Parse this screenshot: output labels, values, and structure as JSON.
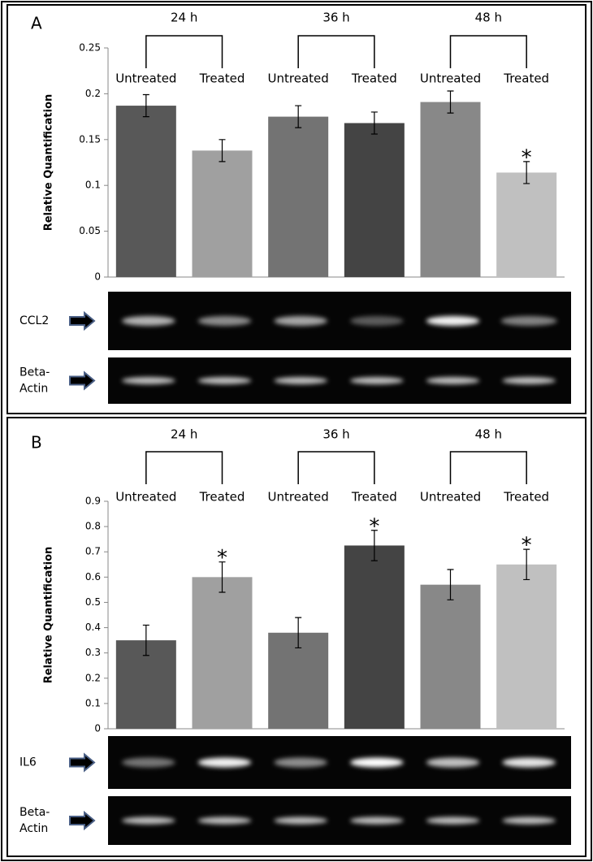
{
  "chart_data": [
    {
      "type": "bar",
      "panel": "A",
      "ylabel": "Relative Quantification",
      "groups": [
        "24 h",
        "36 h",
        "48 h"
      ],
      "categories": [
        "Untreated",
        "Treated",
        "Untreated",
        "Treated",
        "Untreated",
        "Treated"
      ],
      "values": [
        0.187,
        0.138,
        0.175,
        0.168,
        0.191,
        0.114
      ],
      "errors": [
        0.012,
        0.012,
        0.012,
        0.012,
        0.012,
        0.012
      ],
      "significance_labels": [
        null,
        null,
        null,
        null,
        null,
        "*"
      ],
      "colors": [
        "#585858",
        "#a0a0a0",
        "#737373",
        "#444444",
        "#888888",
        "#c0c0c0"
      ],
      "ylim": [
        0,
        0.25
      ],
      "yticks": [
        0,
        0.05,
        0.1,
        0.15,
        0.2,
        0.25
      ],
      "gels": [
        {
          "label_lines": [
            "CCL2"
          ]
        },
        {
          "label_lines": [
            "Beta-",
            "Actin"
          ]
        }
      ]
    },
    {
      "type": "bar",
      "panel": "B",
      "ylabel": "Relative Quantification",
      "groups": [
        "24 h",
        "36 h",
        "48 h"
      ],
      "categories": [
        "Untreated",
        "Treated",
        "Untreated",
        "Treated",
        "Untreated",
        "Treated"
      ],
      "values": [
        0.35,
        0.6,
        0.38,
        0.725,
        0.57,
        0.65
      ],
      "errors": [
        0.06,
        0.06,
        0.06,
        0.06,
        0.06,
        0.06
      ],
      "significance_labels": [
        null,
        "*",
        null,
        "*",
        null,
        "*"
      ],
      "colors": [
        "#585858",
        "#a0a0a0",
        "#737373",
        "#444444",
        "#888888",
        "#c0c0c0"
      ],
      "ylim": [
        0,
        0.9
      ],
      "yticks": [
        0,
        0.1,
        0.2,
        0.3,
        0.4,
        0.5,
        0.6,
        0.7,
        0.8,
        0.9
      ],
      "gels": [
        {
          "label_lines": [
            "IL6"
          ]
        },
        {
          "label_lines": [
            "Beta-",
            "Actin"
          ]
        }
      ]
    }
  ]
}
